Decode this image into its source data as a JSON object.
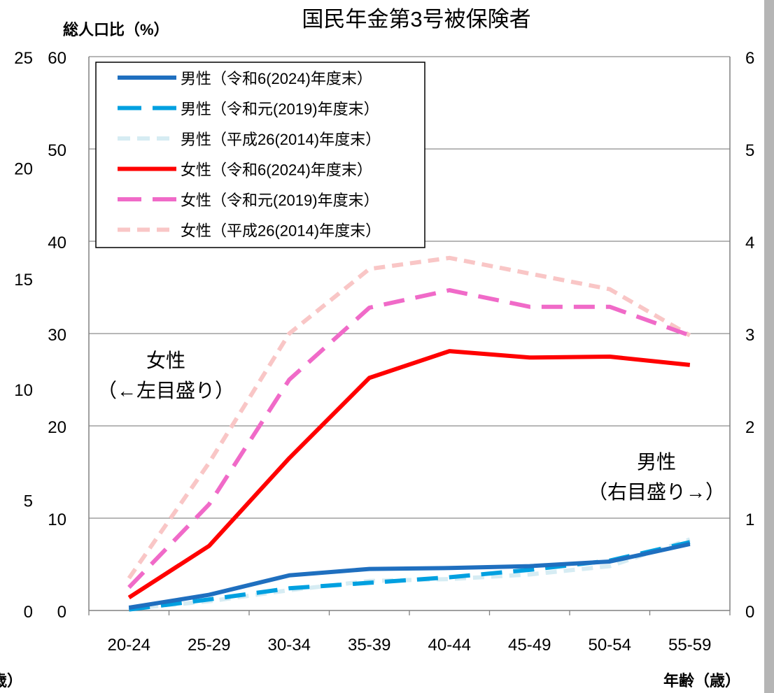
{
  "chart_data": {
    "type": "line",
    "title": "国民年金第3号被保険者",
    "left_axis_labels": [
      "総人口比（%）"
    ],
    "xlabel": "年齢（歳）",
    "categories": [
      "20-24",
      "25-29",
      "30-34",
      "35-39",
      "40-44",
      "45-49",
      "50-54",
      "55-59"
    ],
    "y_left_ticks_outer": [
      "0",
      "5",
      "10",
      "15",
      "20",
      "25"
    ],
    "y_left_ticks_inner": [
      "0",
      "10",
      "20",
      "30",
      "40",
      "50",
      "60"
    ],
    "y_right_ticks": [
      "0",
      "1",
      "2",
      "3",
      "4",
      "5",
      "6"
    ],
    "ylim_left": [
      0,
      60
    ],
    "ylim_right": [
      0,
      6
    ],
    "grid": true,
    "legend_position": "top-left",
    "series": [
      {
        "name": "男性（令和6(2024)年度末）",
        "axis": "right",
        "color": "#1F6FBF",
        "dash": "solid",
        "values": [
          0.03,
          0.17,
          0.38,
          0.45,
          0.46,
          0.48,
          0.53,
          0.72
        ]
      },
      {
        "name": "男性（令和元(2019)年度末）",
        "axis": "right",
        "color": "#00A0E0",
        "dash": "long-dash",
        "values": [
          0.01,
          0.12,
          0.24,
          0.3,
          0.36,
          0.44,
          0.54,
          0.74
        ]
      },
      {
        "name": "男性（平成26(2014)年度末）",
        "axis": "right",
        "color": "#D6ECF3",
        "dash": "short-dash",
        "values": [
          0.02,
          0.1,
          0.22,
          0.32,
          0.34,
          0.39,
          0.48,
          0.77
        ]
      },
      {
        "name": "女性（令和6(2024)年度末）",
        "axis": "left",
        "color": "#FF0000",
        "dash": "solid",
        "values": [
          1.4,
          7.0,
          16.5,
          25.2,
          28.1,
          27.4,
          27.5,
          26.6
        ]
      },
      {
        "name": "女性（令和元(2019)年度末）",
        "axis": "left",
        "color": "#F06AC8",
        "dash": "long-dash",
        "values": [
          2.5,
          11.5,
          25.0,
          32.8,
          34.7,
          32.9,
          32.9,
          29.8
        ]
      },
      {
        "name": "女性（平成26(2014)年度末）",
        "axis": "left",
        "color": "#F9C6C6",
        "dash": "short-dash",
        "values": [
          3.5,
          16.0,
          30.0,
          37.0,
          38.2,
          36.5,
          34.8,
          29.8
        ]
      }
    ],
    "annotations": [
      {
        "id": "female",
        "lines": [
          "女性",
          "（←左目盛り）"
        ]
      },
      {
        "id": "male",
        "lines": [
          "男性",
          "（右目盛り→）"
        ]
      }
    ],
    "bottom_left_fragment": "歳）"
  }
}
